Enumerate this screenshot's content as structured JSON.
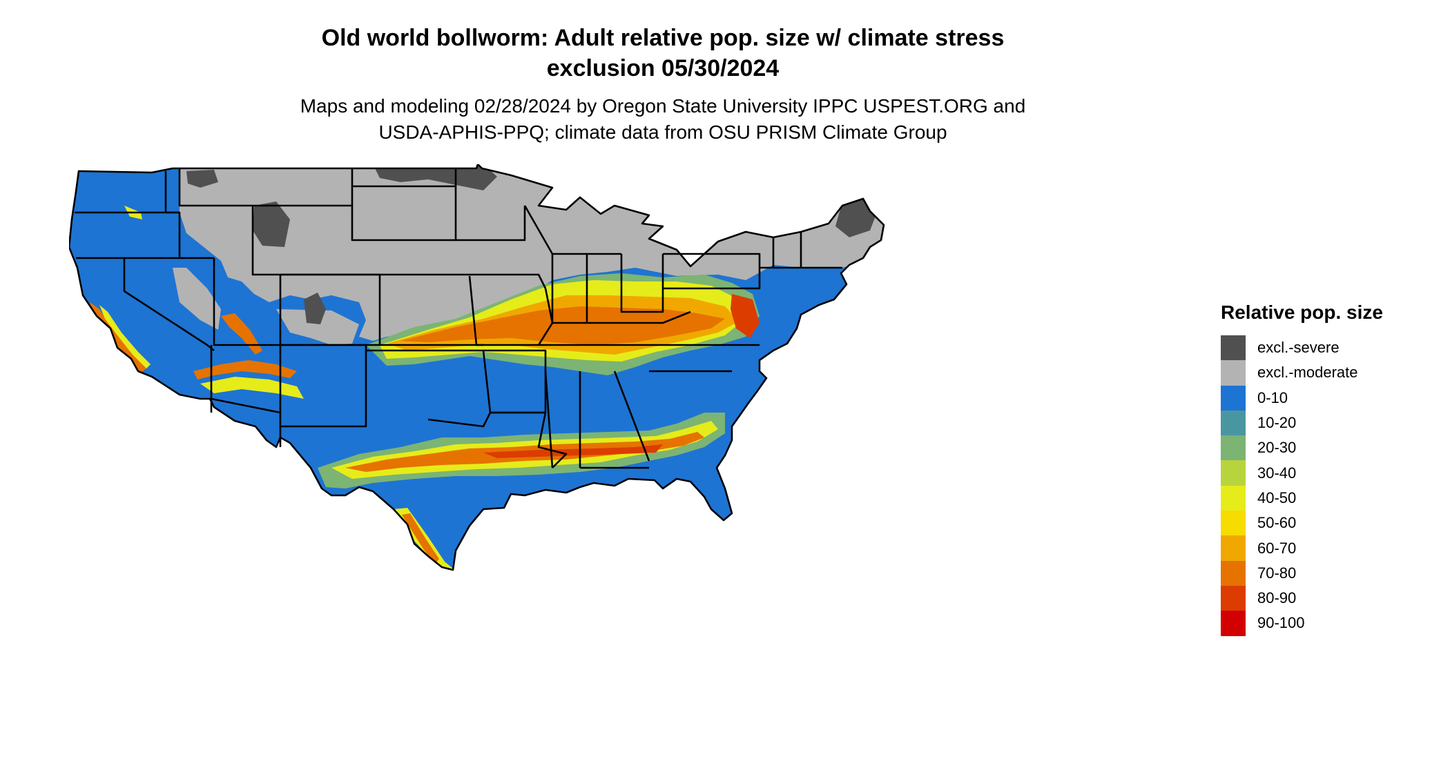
{
  "header": {
    "title_line1": "Old world bollworm: Adult relative pop. size w/ climate stress",
    "title_line2": "exclusion 05/30/2024",
    "subtitle_line1": "Maps and modeling 02/28/2024 by Oregon State University IPPC USPEST.ORG and",
    "subtitle_line2": "USDA-APHIS-PPQ; climate data from OSU PRISM Climate Group"
  },
  "legend": {
    "title": "Relative pop. size",
    "items": [
      {
        "label": "excl.-severe",
        "color": "#505050"
      },
      {
        "label": "excl.-moderate",
        "color": "#b3b3b3"
      },
      {
        "label": "0-10",
        "color": "#1e74d2"
      },
      {
        "label": "10-20",
        "color": "#4a96a0"
      },
      {
        "label": "20-30",
        "color": "#7cb474"
      },
      {
        "label": "30-40",
        "color": "#b8d43c"
      },
      {
        "label": "40-50",
        "color": "#e6ec1a"
      },
      {
        "label": "50-60",
        "color": "#f7dc00"
      },
      {
        "label": "60-70",
        "color": "#f0a800"
      },
      {
        "label": "70-80",
        "color": "#e67300"
      },
      {
        "label": "80-90",
        "color": "#dc3c00"
      },
      {
        "label": "90-100",
        "color": "#d20000"
      }
    ]
  },
  "map": {
    "region": "Contiguous United States",
    "state_border_color": "#000000"
  }
}
